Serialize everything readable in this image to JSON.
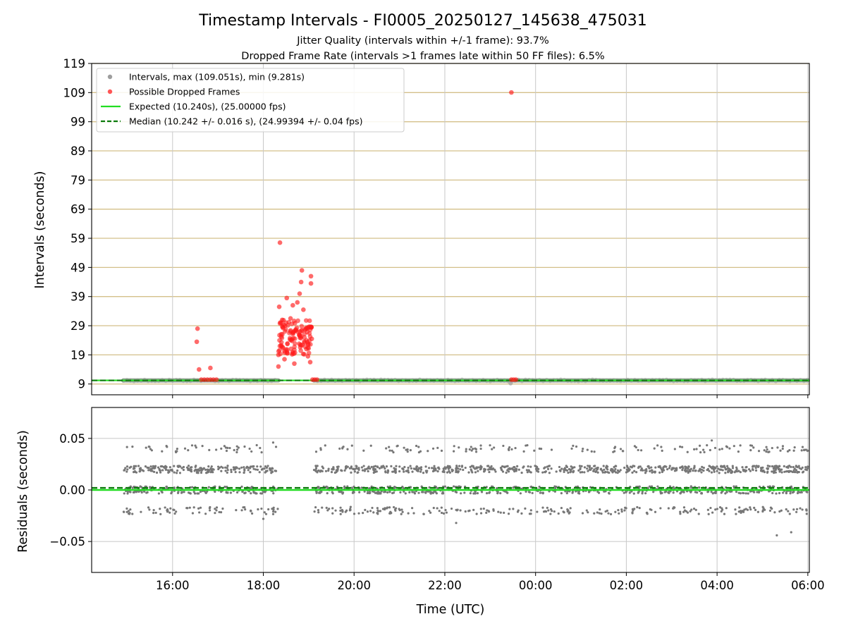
{
  "chart_data": [
    {
      "type": "scatter",
      "title": "Timestamp Intervals - FI0005_20250127_145638_475031",
      "subtitle_lines": [
        "Jitter Quality (intervals within +/-1 frame): 93.7%",
        "Dropped Frame Rate (intervals >1 frames late within 50 FF files): 6.5%"
      ],
      "ylabel": "Intervals (seconds)",
      "x_is_shared_time_axis": true,
      "ylim": [
        5.3,
        119
      ],
      "yticks": [
        "9",
        "19",
        "29",
        "39",
        "49",
        "59",
        "69",
        "79",
        "89",
        "99",
        "109",
        "119"
      ],
      "grid": "horizontal lines at y ticks (tan)",
      "legend_position": "top-left",
      "legend": [
        "Intervals, max (109.051s), min (9.281s)",
        "Possible Dropped Frames",
        "Expected (10.240s), (25.00000 fps)",
        "Median (10.242 +/- 0.016 s), (24.99394 +/- 0.04 fps)"
      ],
      "expected_interval": 10.24,
      "median_interval": 10.242,
      "series": [
        {
          "name": "Intervals, max (109.051s), min (9.281s)",
          "color": "#9e9e9e",
          "segments": [
            {
              "x_start": "14:55",
              "x_end": "18:20",
              "y": 10.24
            },
            {
              "x_start": "19:07",
              "x_end": "06:00",
              "y": 10.24
            }
          ],
          "points": [
            {
              "x": "23:27",
              "y": 9.28
            }
          ]
        },
        {
          "name": "Possible Dropped Frames",
          "color": "#ff0000",
          "points": [
            {
              "x": "16:33",
              "y": 28.0
            },
            {
              "x": "16:32",
              "y": 23.5
            },
            {
              "x": "16:35",
              "y": 14.0
            },
            {
              "x": "16:50",
              "y": 14.5
            },
            {
              "x": "16:38",
              "y": 10.5
            },
            {
              "x": "16:42",
              "y": 10.5
            },
            {
              "x": "16:46",
              "y": 10.5
            },
            {
              "x": "16:50",
              "y": 10.5
            },
            {
              "x": "16:54",
              "y": 10.5
            },
            {
              "x": "16:58",
              "y": 10.5
            },
            {
              "x": "18:22",
              "y": 57.5
            },
            {
              "x": "18:21",
              "y": 35.5
            },
            {
              "x": "18:25",
              "y": 31.0
            },
            {
              "x": "18:20",
              "y": 19.0
            },
            {
              "x": "18:20",
              "y": 15.0
            },
            {
              "x": "18:28",
              "y": 17.5
            },
            {
              "x": "18:31",
              "y": 38.5
            },
            {
              "x": "18:36",
              "y": 31.5
            },
            {
              "x": "18:39",
              "y": 36.0
            },
            {
              "x": "18:41",
              "y": 16.0
            },
            {
              "x": "18:45",
              "y": 37.0
            },
            {
              "x": "18:48",
              "y": 40.0
            },
            {
              "x": "18:50",
              "y": 44.0
            },
            {
              "x": "18:51",
              "y": 48.0
            },
            {
              "x": "18:53",
              "y": 34.5
            },
            {
              "x": "18:57",
              "y": 21.0
            },
            {
              "x": "18:59",
              "y": 18.5
            },
            {
              "x": "19:02",
              "y": 16.5
            },
            {
              "x": "19:03",
              "y": 46.0
            },
            {
              "x": "19:03",
              "y": 43.5
            },
            {
              "x": "19:04",
              "y": 24.5
            },
            {
              "x": "19:05",
              "y": 10.5
            },
            {
              "x": "19:08",
              "y": 10.5
            },
            {
              "x": "19:11",
              "y": 10.5
            },
            {
              "x": "23:28",
              "y": 109.05
            },
            {
              "x": "23:28",
              "y": 10.5
            },
            {
              "x": "23:31",
              "y": 10.5
            },
            {
              "x": "23:34",
              "y": 10.5
            }
          ],
          "cluster": {
            "x_start": "18:20",
            "x_end": "19:04",
            "y_min": 19,
            "y_max": 31,
            "approx_count": 120
          }
        }
      ],
      "lines": [
        {
          "name": "Expected (10.240s), (25.00000 fps)",
          "y": 10.24,
          "color": "#22dd22",
          "style": "solid"
        },
        {
          "name": "Median (10.242 +/- 0.016 s), (24.99394 +/- 0.04 fps)",
          "y": 10.242,
          "color": "#0b7a0b",
          "style": "dashed"
        }
      ]
    },
    {
      "type": "scatter",
      "ylabel": "Residuals (seconds)",
      "xlabel": "Time (UTC)",
      "xlim": [
        "14:13",
        "06:02"
      ],
      "xticks": [
        "16:00",
        "18:00",
        "20:00",
        "22:00",
        "00:00",
        "02:00",
        "04:00",
        "06:00"
      ],
      "ylim": [
        -0.08,
        0.08
      ],
      "yticks": [
        "0.05",
        "0.00",
        "−0.05"
      ],
      "ytick_values": [
        0.05,
        0.0,
        -0.05
      ],
      "grid": "both axes (light gray)",
      "series": [
        {
          "name": "",
          "color": "#777777",
          "description_bands": [
            0.04,
            0.02,
            0.0,
            -0.02
          ],
          "segments": [
            {
              "x_start": "14:55",
              "x_end": "18:20"
            },
            {
              "x_start": "19:07",
              "x_end": "06:00"
            }
          ],
          "outliers": [
            {
              "x": "05:19",
              "y": -0.044
            },
            {
              "x": "05:38",
              "y": -0.041
            },
            {
              "x": "22:15",
              "y": -0.032
            },
            {
              "x": "18:00",
              "y": -0.028
            },
            {
              "x": "03:53",
              "y": 0.048
            },
            {
              "x": "18:13",
              "y": 0.046
            }
          ]
        }
      ],
      "lines": [
        {
          "y": 0.0,
          "color": "#22dd22",
          "style": "solid"
        },
        {
          "y": 0.002,
          "color": "#0b7a0b",
          "style": "dashed"
        }
      ]
    }
  ]
}
